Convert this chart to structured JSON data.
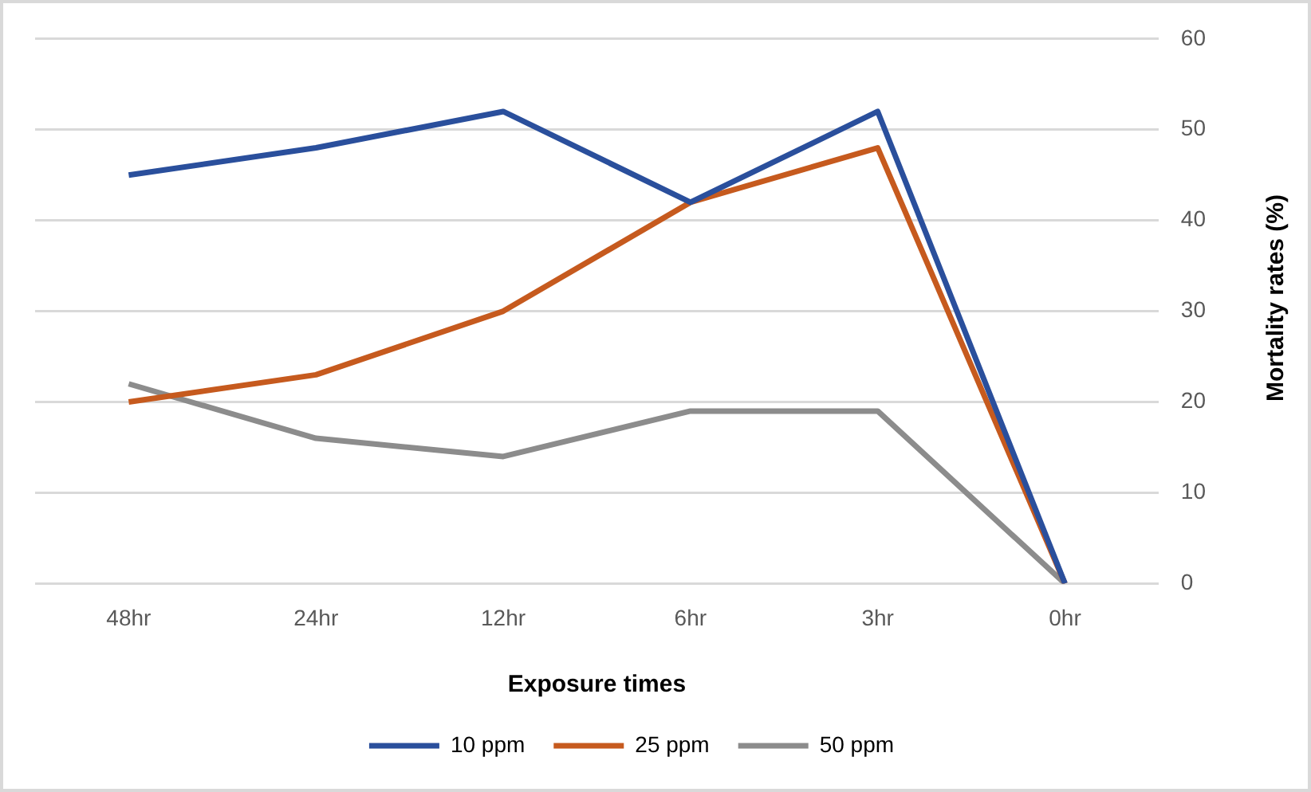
{
  "chart_data": {
    "type": "line",
    "xlabel": "Exposure times",
    "ylabel": "Mortality rates (%)",
    "categories": [
      "48hr",
      "24hr",
      "12hr",
      "6hr",
      "3hr",
      "0hr"
    ],
    "series": [
      {
        "name": "10 ppm",
        "color": "#2a4f9c",
        "values": [
          45,
          48,
          52,
          42,
          52,
          0
        ]
      },
      {
        "name": "25 ppm",
        "color": "#c65a1e",
        "values": [
          20,
          23,
          30,
          42,
          48,
          0
        ]
      },
      {
        "name": "50 ppm",
        "color": "#8c8c8c",
        "values": [
          22,
          16,
          14,
          19,
          19,
          0
        ]
      }
    ],
    "ylim": [
      0,
      60
    ],
    "yticks": [
      0,
      10,
      20,
      30,
      40,
      50,
      60
    ],
    "grid": "y",
    "legend": "bottom",
    "marker": "none",
    "line_style": "solid"
  }
}
